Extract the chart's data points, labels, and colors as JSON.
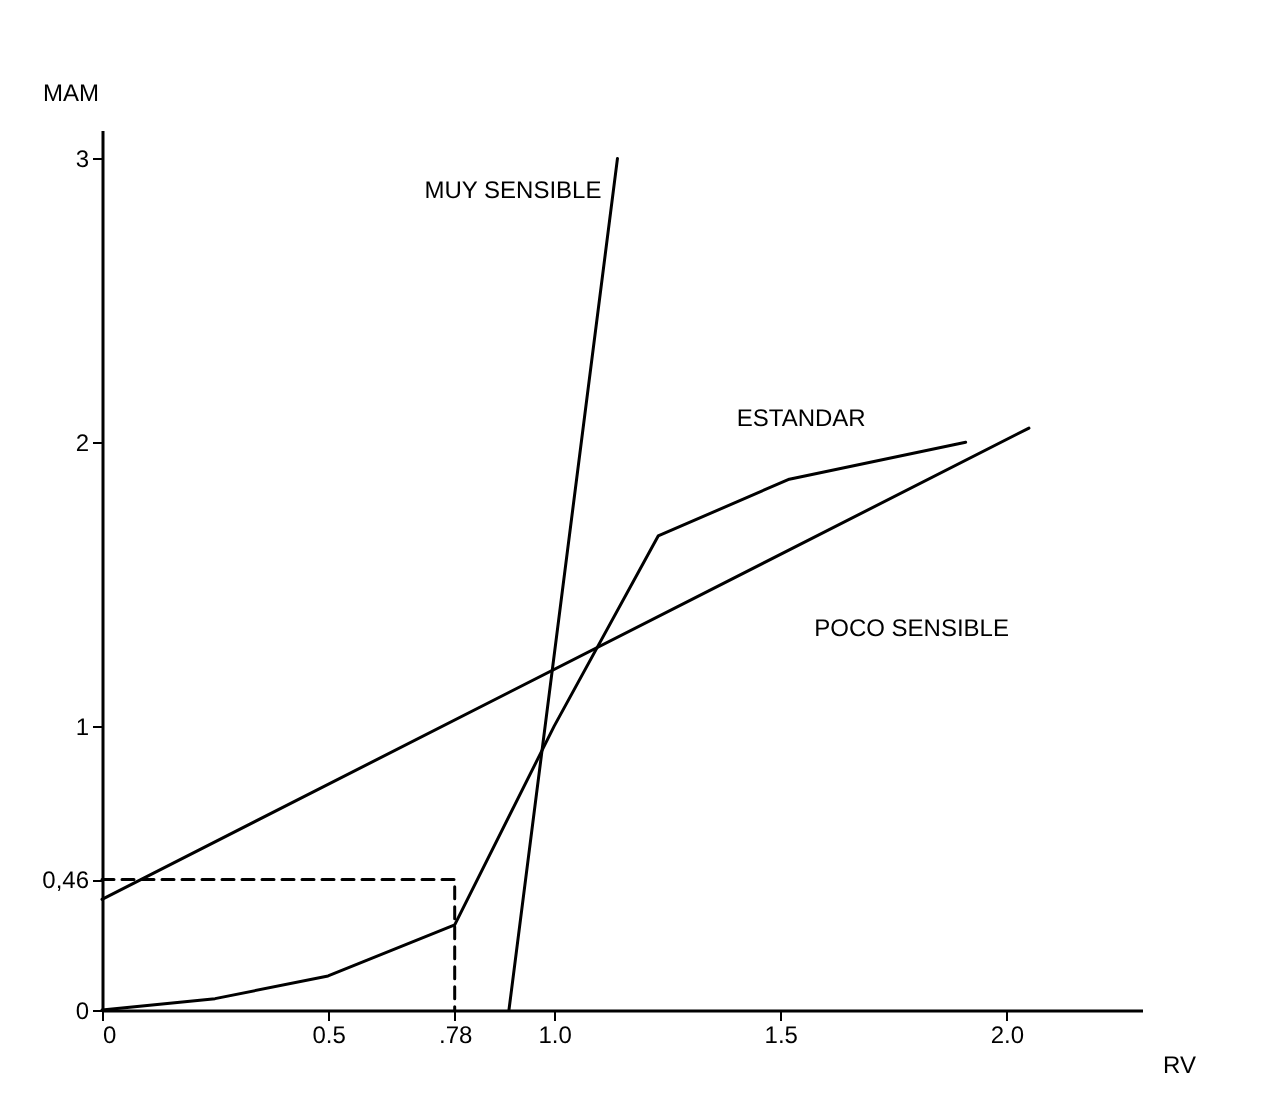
{
  "chart_data": {
    "type": "line",
    "xlabel": "RV",
    "ylabel": "MAM",
    "xlim": [
      0,
      2.3
    ],
    "ylim": [
      0,
      3.1
    ],
    "xticks": [
      0,
      0.5,
      {
        "value": 0.78,
        "label": ".78"
      },
      {
        "value": 1,
        "label": "1.0"
      },
      1.5,
      {
        "value": 2,
        "label": "2.0"
      }
    ],
    "yticks": [
      0,
      {
        "value": 0.46,
        "label": "0,46"
      },
      1,
      2,
      3
    ],
    "grid": false,
    "legend": false,
    "marker": "none",
    "series": [
      {
        "name": "MUY SENSIBLE",
        "color": "#000000",
        "line_style": "solid",
        "x": [
          0.9,
          1.14
        ],
        "values": [
          0,
          3
        ]
      },
      {
        "name": "ESTANDAR",
        "color": "#000000",
        "line_style": "solid",
        "x": [
          0,
          0.25,
          0.5,
          0.78,
          1.0,
          1.23,
          1.52,
          1.91
        ],
        "values": [
          0,
          0.04,
          0.12,
          0.3,
          1,
          1.67,
          1.87,
          2.0
        ]
      },
      {
        "name": "POCO SENSIBLE",
        "color": "#000000",
        "line_style": "solid",
        "x": [
          0,
          2.05
        ],
        "values": [
          0.39,
          2.05
        ]
      },
      {
        "color": "#000000",
        "line_style": "dashed",
        "x": [
          0,
          0.78,
          0.78
        ],
        "values": [
          0.46,
          0.46,
          0
        ]
      }
    ]
  }
}
